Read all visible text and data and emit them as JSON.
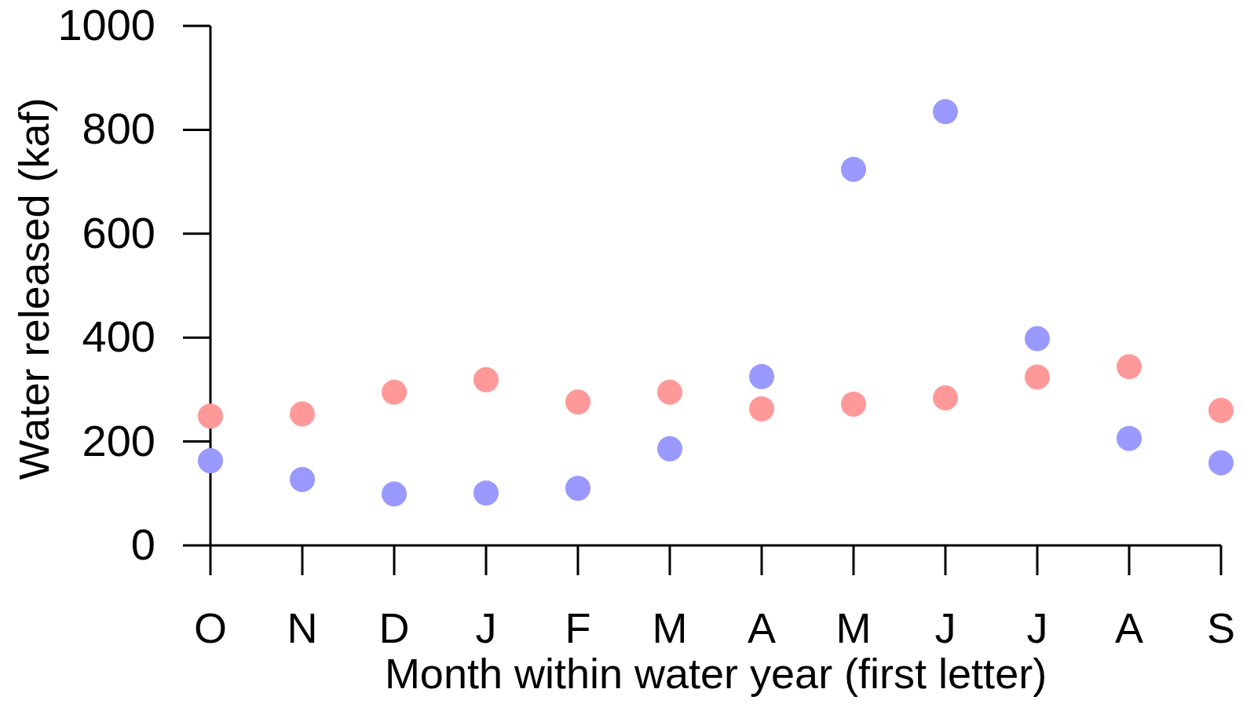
{
  "chart_data": {
    "type": "scatter",
    "xlabel": "Month within water year (first letter)",
    "ylabel": "Water released (kaf)",
    "categories": [
      "O",
      "N",
      "D",
      "J",
      "F",
      "M",
      "A",
      "M",
      "J",
      "J",
      "A",
      "S"
    ],
    "series": [
      {
        "color": "#ff9999",
        "values": [
          249,
          253,
          295,
          319,
          276,
          295,
          263,
          272,
          284,
          324,
          344,
          260
        ]
      },
      {
        "color": "#9999ff",
        "values": [
          163,
          127,
          99,
          101,
          110,
          186,
          325,
          724,
          835,
          398,
          206,
          159
        ]
      }
    ],
    "ylim": [
      0,
      1000
    ],
    "yticks": [
      0,
      200,
      400,
      600,
      800,
      1000
    ],
    "grid": false,
    "marker": "circle"
  }
}
